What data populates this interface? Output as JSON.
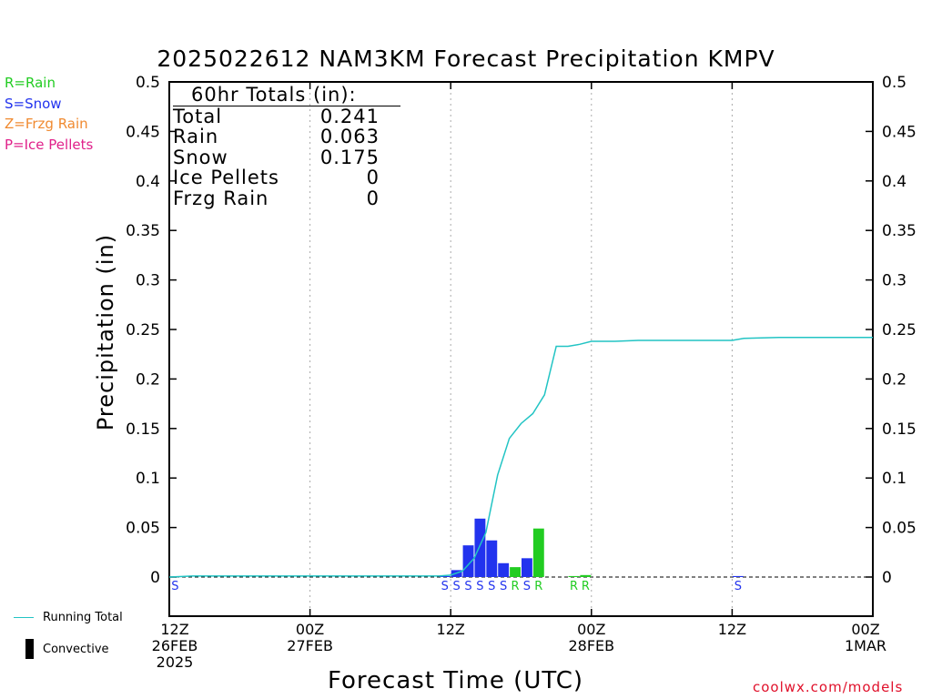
{
  "title": "2025022612 NAM3KM Forecast Precipitation KMPV",
  "ptype_legend": [
    {
      "text": "R=Rain",
      "color": "#22cc22"
    },
    {
      "text": "S=Snow",
      "color": "#2233ee"
    },
    {
      "text": "Z=Frzg Rain",
      "color": "#f08a30"
    },
    {
      "text": "P=Ice Pellets",
      "color": "#e0208a"
    }
  ],
  "totals": {
    "header": "60hr Totals (in):",
    "rows": [
      {
        "label": "Total",
        "value": "0.241"
      },
      {
        "label": "Rain",
        "value": "0.063"
      },
      {
        "label": "Snow",
        "value": "0.175"
      },
      {
        "label": "Ice Pellets",
        "value": "0"
      },
      {
        "label": "Frzg Rain",
        "value": "0"
      }
    ]
  },
  "bottom_legend": {
    "running_total": "Running Total",
    "convective": "Convective"
  },
  "credit": "coolwx.com/models",
  "colors": {
    "rain": "#22cc22",
    "snow": "#2233ee",
    "running_total": "#22c4c4",
    "grid": "#aaaaaa"
  },
  "chart_data": {
    "type": "bar",
    "title": "2025022612 NAM3KM Forecast Precipitation KMPV",
    "xlabel": "Forecast Time (UTC)",
    "ylabel": "Precipitation (in)",
    "ylim": [
      0,
      0.5
    ],
    "xlim_hours": [
      0,
      60
    ],
    "y_ticks": [
      "0",
      "0.05",
      "0.1",
      "0.15",
      "0.2",
      "0.25",
      "0.3",
      "0.35",
      "0.4",
      "0.45",
      "0.5"
    ],
    "x_ticks": [
      {
        "hour": 0,
        "lines": [
          "12Z",
          "26FEB",
          "2025"
        ]
      },
      {
        "hour": 12,
        "lines": [
          "00Z",
          "27FEB"
        ]
      },
      {
        "hour": 24,
        "lines": [
          "12Z"
        ]
      },
      {
        "hour": 36,
        "lines": [
          "00Z",
          "28FEB"
        ]
      },
      {
        "hour": 48,
        "lines": [
          "12Z"
        ]
      },
      {
        "hour": 60,
        "lines": [
          "00Z",
          "1MAR"
        ]
      }
    ],
    "grid": "dotted vertical at 12-hour marks",
    "bars": [
      {
        "hour": 24,
        "value": 0.001,
        "type": "S"
      },
      {
        "hour": 25,
        "value": 0.007,
        "type": "S"
      },
      {
        "hour": 26,
        "value": 0.032,
        "type": "S"
      },
      {
        "hour": 27,
        "value": 0.059,
        "type": "S"
      },
      {
        "hour": 28,
        "value": 0.037,
        "type": "S"
      },
      {
        "hour": 29,
        "value": 0.014,
        "type": "S"
      },
      {
        "hour": 30,
        "value": 0.01,
        "type": "R"
      },
      {
        "hour": 31,
        "value": 0.019,
        "type": "S"
      },
      {
        "hour": 32,
        "value": 0.049,
        "type": "R"
      },
      {
        "hour": 35,
        "value": 0.001,
        "type": "R"
      },
      {
        "hour": 36,
        "value": 0.002,
        "type": "R"
      },
      {
        "hour": 49,
        "value": 0.001,
        "type": "S"
      }
    ],
    "ptype_markers": [
      {
        "hour": 1,
        "type": "S"
      },
      {
        "hour": 24,
        "type": "S"
      },
      {
        "hour": 25,
        "type": "S"
      },
      {
        "hour": 26,
        "type": "S"
      },
      {
        "hour": 27,
        "type": "S"
      },
      {
        "hour": 28,
        "type": "S"
      },
      {
        "hour": 29,
        "type": "S"
      },
      {
        "hour": 30,
        "type": "R"
      },
      {
        "hour": 31,
        "type": "S"
      },
      {
        "hour": 32,
        "type": "R"
      },
      {
        "hour": 35,
        "type": "R"
      },
      {
        "hour": 36,
        "type": "R"
      },
      {
        "hour": 49,
        "type": "S"
      }
    ],
    "running_total": [
      [
        0,
        0
      ],
      [
        2,
        0.001
      ],
      [
        23,
        0.001
      ],
      [
        24,
        0.002
      ],
      [
        25,
        0.006
      ],
      [
        26,
        0.019
      ],
      [
        27,
        0.045
      ],
      [
        28,
        0.103
      ],
      [
        29,
        0.14
      ],
      [
        30,
        0.155
      ],
      [
        31,
        0.165
      ],
      [
        32,
        0.184
      ],
      [
        33,
        0.233
      ],
      [
        34,
        0.233
      ],
      [
        35,
        0.235
      ],
      [
        36,
        0.238
      ],
      [
        38,
        0.238
      ],
      [
        40,
        0.239
      ],
      [
        48,
        0.239
      ],
      [
        49,
        0.241
      ],
      [
        52,
        0.242
      ],
      [
        60,
        0.242
      ]
    ]
  }
}
